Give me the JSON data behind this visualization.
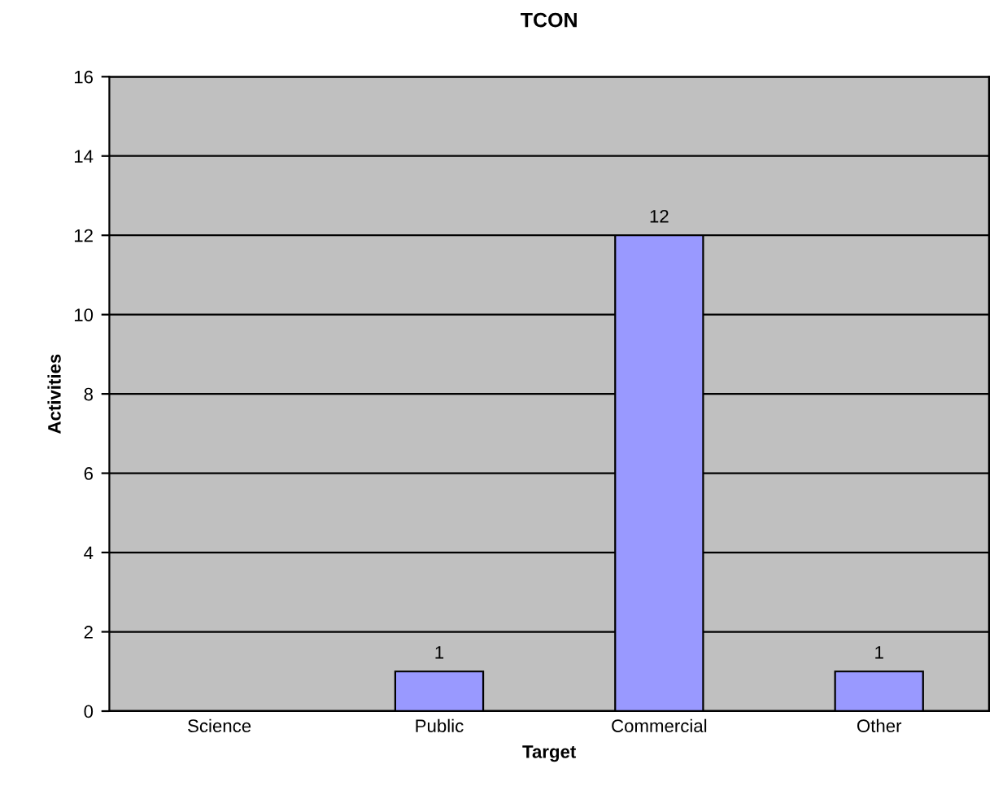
{
  "chart_data": {
    "type": "bar",
    "title": "TCON",
    "xlabel": "Target",
    "ylabel": "Activities",
    "categories": [
      "Science",
      "Public",
      "Commercial",
      "Other"
    ],
    "values": [
      null,
      1,
      12,
      1
    ],
    "value_labels": [
      null,
      "1",
      "12",
      "1"
    ],
    "color": "#9999ff",
    "ylim": [
      0,
      16
    ],
    "yticks": [
      0,
      2,
      4,
      6,
      8,
      10,
      12,
      14,
      16
    ],
    "grid": "y"
  }
}
